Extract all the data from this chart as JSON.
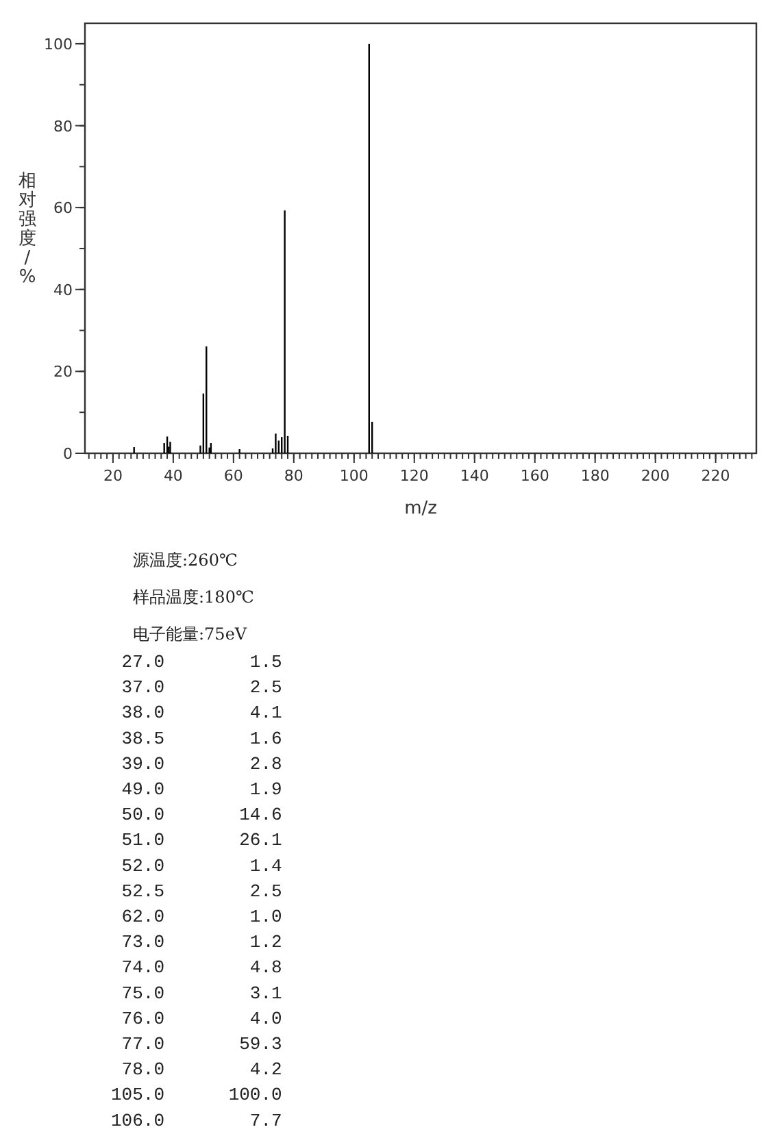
{
  "chart_data": {
    "type": "bar",
    "xlabel": "m/z",
    "ylabel": "相对强度/%",
    "x": [
      27.0,
      37.0,
      38.0,
      38.5,
      39.0,
      49.0,
      50.0,
      51.0,
      52.0,
      52.5,
      62.0,
      73.0,
      74.0,
      75.0,
      76.0,
      77.0,
      78.0,
      105.0,
      106.0
    ],
    "values": [
      1.5,
      2.5,
      4.1,
      1.6,
      2.8,
      1.9,
      14.6,
      26.1,
      1.4,
      2.5,
      1.0,
      1.2,
      4.8,
      3.1,
      4.0,
      59.3,
      4.2,
      100.0,
      7.7
    ],
    "color": "#000000",
    "xlim": [
      10.7,
      233.5
    ],
    "xticks": [
      20,
      40,
      60,
      80,
      100,
      120,
      140,
      160,
      180,
      200,
      220
    ],
    "ylim": [
      0,
      105
    ],
    "yticks": [
      0,
      20,
      40,
      60,
      80,
      100
    ],
    "grid": false,
    "legend": false,
    "annotations": [
      "源温度:260℃",
      "样品温度:180℃",
      "电子能量:75eV",
      " 27.0        1.5",
      " 37.0        2.5",
      " 38.0        4.1",
      " 38.5        1.6",
      " 39.0        2.8",
      " 49.0        1.9",
      " 50.0       14.6",
      " 51.0       26.1",
      " 52.0        1.4",
      " 52.5        2.5",
      " 62.0        1.0",
      " 73.0        1.2",
      " 74.0        4.8",
      " 75.0        3.1",
      " 76.0        4.0",
      " 77.0       59.3",
      " 78.0        4.2",
      "105.0      100.0",
      "106.0        7.7"
    ]
  }
}
